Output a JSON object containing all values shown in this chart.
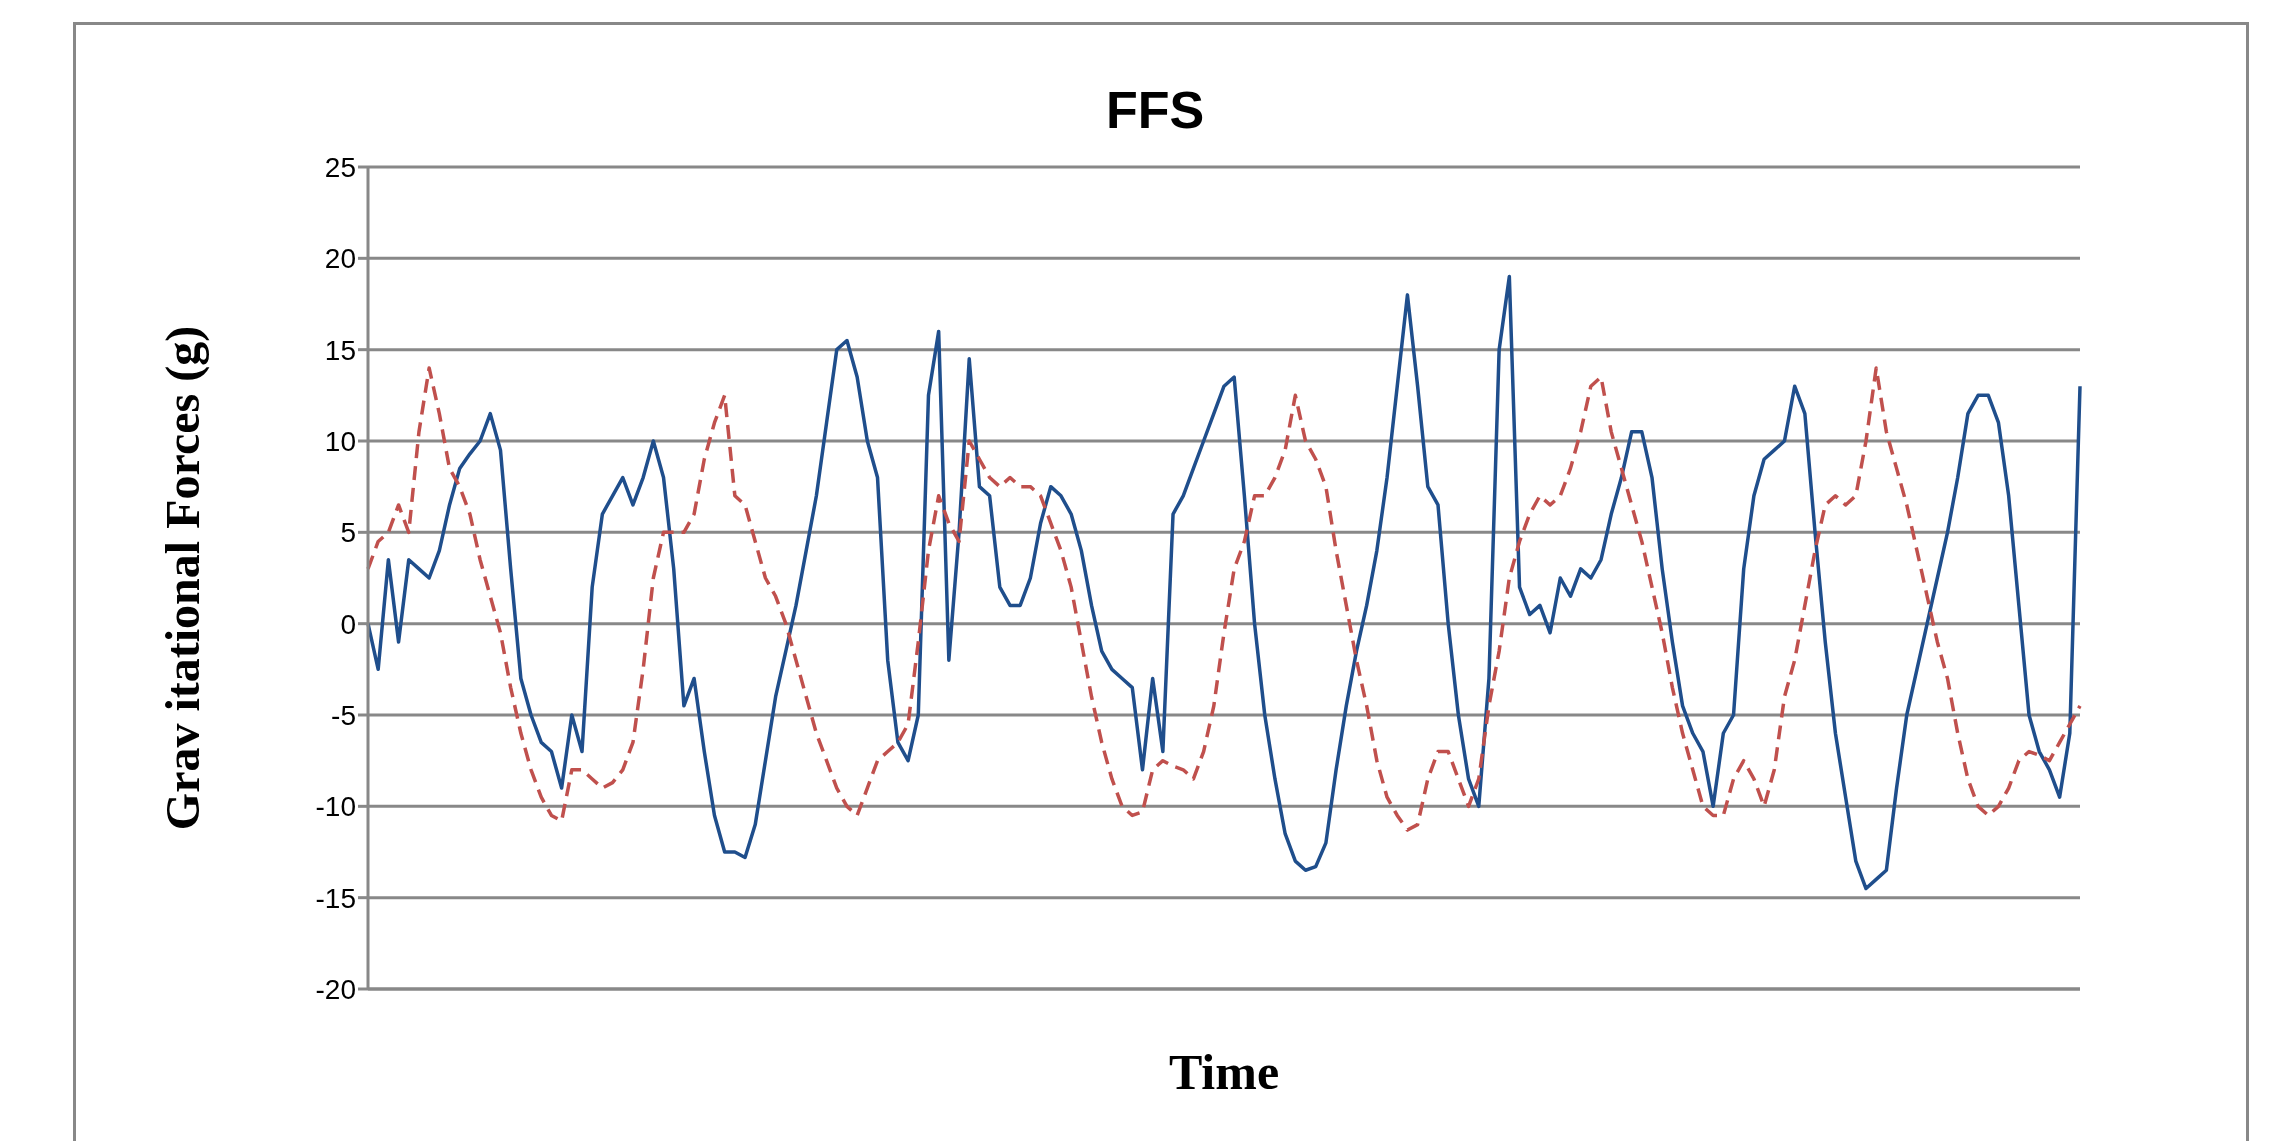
{
  "chart_data": {
    "type": "line",
    "title": "FFS",
    "xlabel": "Time",
    "ylabel": "Grav itational Forces (g)",
    "ylim": [
      -20,
      25
    ],
    "yticks": [
      -20,
      -15,
      -10,
      -5,
      0,
      5,
      10,
      15,
      20,
      25
    ],
    "grid": "y",
    "legend": false,
    "marker": "none",
    "categories": [
      null,
      null,
      null,
      null,
      null,
      null,
      null,
      null,
      null,
      null,
      null,
      null,
      null,
      null,
      null,
      null,
      null,
      null,
      null,
      null,
      null,
      null,
      null,
      null,
      null,
      null,
      null,
      null,
      null,
      null,
      null,
      null,
      null,
      null,
      null,
      null,
      null,
      null,
      null,
      null,
      null,
      null,
      null,
      null,
      null,
      null,
      null,
      null,
      null,
      null,
      null,
      null,
      null,
      null,
      null,
      null,
      null,
      null,
      null,
      null,
      null,
      null,
      null,
      null,
      null,
      null,
      null,
      null,
      null,
      null,
      null,
      null,
      null,
      null,
      null,
      null,
      null,
      null,
      null,
      null,
      null,
      null,
      null,
      null,
      null,
      null,
      null,
      null,
      null,
      null,
      null,
      null,
      null,
      null,
      null,
      null,
      null,
      null,
      null,
      null,
      null,
      null,
      null,
      null,
      null,
      null,
      null,
      null,
      null,
      null,
      null,
      null,
      null,
      null,
      null,
      null,
      null,
      null,
      null,
      null,
      null,
      null,
      null,
      null,
      null,
      null,
      null,
      null,
      null,
      null,
      null,
      null,
      null,
      null,
      null,
      null,
      null,
      null,
      null,
      null,
      null,
      null,
      null,
      null,
      null,
      null,
      null,
      null,
      null,
      null,
      null,
      null,
      null,
      null,
      null,
      null,
      null,
      null,
      null,
      null,
      null,
      null,
      null,
      null,
      null,
      null,
      null,
      null,
      null
    ],
    "series": [
      {
        "color": "#1f4e8c",
        "line_style": "solid",
        "values": [
          0,
          -2.5,
          3.5,
          -1,
          3.5,
          3,
          2.5,
          4,
          6.5,
          8.5,
          9.3,
          10,
          11.5,
          9.5,
          3,
          -3,
          -5,
          -6.5,
          -7,
          -9,
          -5,
          -7,
          2,
          6,
          7,
          8,
          6.5,
          8,
          10,
          8,
          3,
          -4.5,
          -3,
          -7,
          -10.5,
          -12.5,
          -12.5,
          -12.8,
          -11,
          -7.5,
          -4,
          -1.5,
          1,
          4,
          7,
          11,
          15,
          15.5,
          13.5,
          10,
          8,
          -2,
          -6.5,
          -7.5,
          -5,
          12.5,
          16,
          -2,
          5,
          14.5,
          7.5,
          7,
          2,
          1,
          1,
          2.5,
          5.5,
          7.5,
          7,
          6,
          4,
          1,
          -1.5,
          -2.5,
          -3,
          -3.5,
          -8,
          -3,
          -7,
          6,
          7,
          8.5,
          10,
          11.5,
          13,
          13.5,
          7,
          0,
          -5,
          -8.5,
          -11.5,
          -13,
          -13.5,
          -13.3,
          -12,
          -8,
          -4.5,
          -1.5,
          1,
          4,
          8,
          13,
          18,
          13,
          7.5,
          6.5,
          0,
          -5,
          -8.5,
          -10,
          -3,
          15,
          19,
          2,
          0.5,
          1,
          -0.5,
          2.5,
          1.5,
          3,
          2.5,
          3.5,
          6,
          8,
          10.5,
          10.5,
          8,
          3,
          -1,
          -4.5,
          -6,
          -7,
          -10,
          -6,
          -5,
          3,
          7,
          9,
          9.5,
          10,
          13,
          11.5,
          5,
          -1,
          -6,
          -9.5,
          -13,
          -14.5,
          -14,
          -13.5,
          -9,
          -5,
          -2.5,
          0,
          2.5,
          5,
          8,
          11.5,
          12.5,
          12.5,
          11,
          7,
          1,
          -5,
          -7,
          -8,
          -9.5,
          -6,
          13
        ]
      },
      {
        "color": "#c0504d",
        "line_style": "dashed",
        "values": [
          3,
          4.5,
          5,
          6.5,
          5,
          10.5,
          14,
          11.5,
          8.5,
          7.5,
          6,
          3.5,
          1.5,
          -0.5,
          -3.5,
          -6,
          -8,
          -9.5,
          -10.5,
          -10.8,
          -8,
          -8,
          -8.5,
          -9,
          -8.7,
          -8,
          -6.5,
          -2.5,
          2.5,
          5,
          5,
          5,
          6,
          9,
          11,
          12.5,
          7,
          6.5,
          4.5,
          2.5,
          1.5,
          0,
          -2,
          -4,
          -6,
          -7.5,
          -9,
          -10,
          -10.5,
          -9,
          -7.5,
          -7,
          -6.5,
          -5.5,
          -1,
          4,
          7,
          5.5,
          4.5,
          10,
          9,
          8,
          7.5,
          8,
          7.5,
          7.5,
          7,
          5.5,
          4,
          2,
          -1,
          -4,
          -6.5,
          -8.5,
          -10,
          -10.5,
          -10.3,
          -8,
          -7.5,
          -7.8,
          -8,
          -8.5,
          -7,
          -4.5,
          -0.5,
          3,
          4.5,
          7,
          7,
          8,
          9.5,
          12.5,
          10,
          9,
          7.5,
          4,
          1,
          -2,
          -4.5,
          -7.5,
          -9.5,
          -10.5,
          -11.3,
          -11,
          -8.5,
          -7,
          -7,
          -8.5,
          -10,
          -8.5,
          -4.5,
          -1.5,
          2.5,
          4.5,
          6,
          7,
          6.5,
          7,
          8.5,
          10.5,
          13,
          13.5,
          10.5,
          8.5,
          6.5,
          4.5,
          2,
          -0.5,
          -3.5,
          -6,
          -8,
          -10,
          -10.5,
          -10.5,
          -8.5,
          -7.5,
          -8.5,
          -10,
          -8,
          -4,
          -2,
          1,
          4,
          6.5,
          7,
          6.5,
          7,
          10,
          14,
          10.5,
          8.5,
          6.5,
          4,
          1.5,
          -1,
          -3,
          -6,
          -8.5,
          -10,
          -10.5,
          -10,
          -9,
          -7.5,
          -7,
          -7.2,
          -7.5,
          -6.5,
          -5.5,
          -4.5
        ]
      }
    ]
  }
}
